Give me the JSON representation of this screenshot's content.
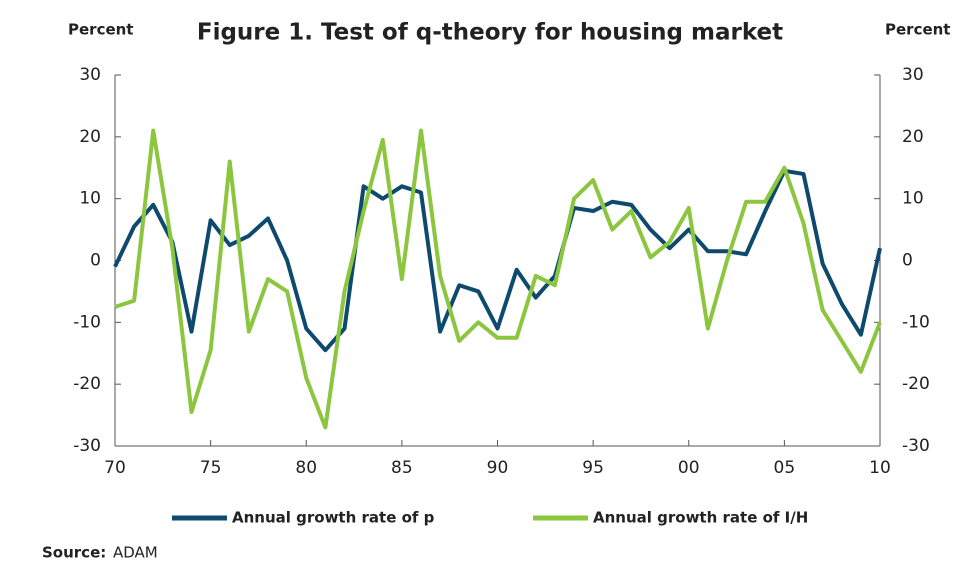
{
  "chart_data": {
    "type": "line",
    "title": "Figure 1. Test of q-theory for housing market",
    "ylabel": "Percent",
    "y2label": "Percent",
    "source_label": "Source:",
    "source": "ADAM",
    "categories": [
      "70",
      null,
      null,
      null,
      null,
      "75",
      null,
      null,
      null,
      null,
      "80",
      null,
      null,
      null,
      null,
      "85",
      null,
      null,
      null,
      null,
      "90",
      null,
      null,
      null,
      null,
      "95",
      null,
      null,
      null,
      null,
      "00",
      null,
      null,
      null,
      null,
      "05",
      null,
      null,
      null,
      null,
      "10"
    ],
    "series": [
      {
        "name": "Annual growth rate of p",
        "color": "#0d4a6e",
        "values": [
          -1,
          5.5,
          9,
          3,
          -11.5,
          6.5,
          2.5,
          4,
          6.8,
          0,
          -11,
          -14.5,
          -11,
          12,
          10,
          12,
          11,
          -11.5,
          -4,
          -5,
          -11,
          -1.5,
          -6,
          -2.5,
          8.5,
          8,
          9.5,
          9,
          5,
          2,
          5,
          1.5,
          1.5,
          1,
          8,
          14.5,
          14,
          -0.5,
          -7,
          -12,
          2
        ]
      },
      {
        "name": "Annual growth rate of I/H",
        "color": "#8cc63f",
        "axis": "y2",
        "values": [
          -7.5,
          -6.5,
          21,
          2,
          -24.5,
          -14.5,
          16,
          -11.5,
          -3,
          -5,
          -19,
          -27,
          -5,
          8,
          19.5,
          -3,
          21,
          -2.5,
          -13,
          -10,
          -12.5,
          -12.5,
          -2.5,
          -4,
          10,
          13,
          5,
          8,
          0.5,
          3,
          8.5,
          -11,
          0,
          9.5,
          9.5,
          15,
          6,
          -8,
          -13,
          -18,
          -10
        ]
      }
    ],
    "ylim": [
      -30,
      30
    ],
    "yticks": [
      30,
      20,
      10,
      0,
      -10,
      -20,
      -30
    ],
    "y2lim": [
      -30,
      30
    ],
    "y2ticks": [
      30,
      20,
      10,
      0,
      -10,
      -20,
      -30
    ],
    "grid": false
  }
}
